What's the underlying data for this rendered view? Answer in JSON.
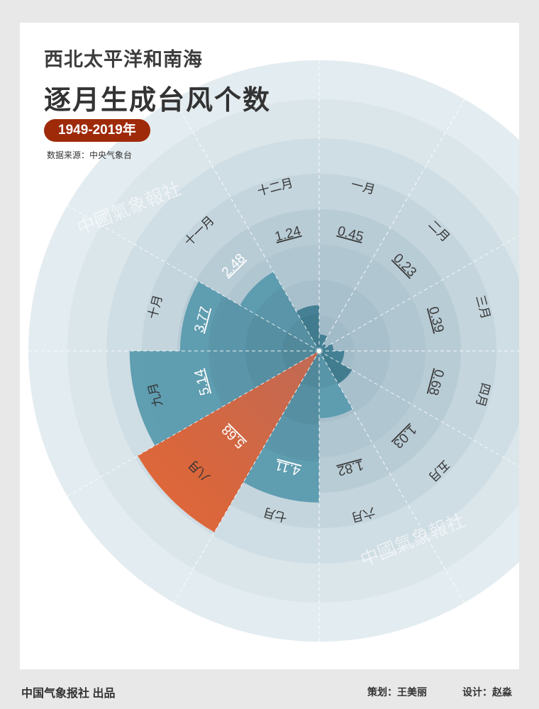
{
  "header": {
    "title_line1": "西北太平洋和南海",
    "title_line2": "逐月生成台风个数",
    "period": "1949-2019年",
    "source": "数据来源：中央气象台"
  },
  "watermark": "中國氣象報社",
  "footer": {
    "publisher": "中国气象报社 出品",
    "planner": "策划：王美丽",
    "designer": "设计：赵淼"
  },
  "colors": {
    "background": "#e8e8e8",
    "card": "#ffffff",
    "ring_light": "#e3ecf0",
    "ring_mid": "#cfdde4",
    "ring_dark": "#b8ccd6",
    "bar": "#5a9aae",
    "bar_dark": "#3f7c91",
    "highlight_start": "#ef6a35",
    "highlight_end": "#c94f27",
    "badge": "#9e2a0a"
  },
  "chart_data": {
    "type": "bar",
    "subtype": "polar",
    "categories": [
      "一月",
      "二月",
      "三月",
      "四月",
      "五月",
      "六月",
      "七月",
      "八月",
      "九月",
      "十月",
      "十一月",
      "十二月"
    ],
    "values": [
      0.45,
      0.23,
      0.39,
      0.68,
      1.03,
      1.82,
      4.11,
      5.68,
      5.14,
      3.77,
      2.48,
      1.24
    ],
    "value_labels": [
      "0.45",
      "0.23",
      "0.39",
      "0.68",
      "1.03",
      "1.82",
      "4.11",
      "5.68",
      "5.14",
      "3.77",
      "2.48",
      "1.24"
    ],
    "highlight": "八月",
    "start": "top, clockwise",
    "grid": true
  }
}
